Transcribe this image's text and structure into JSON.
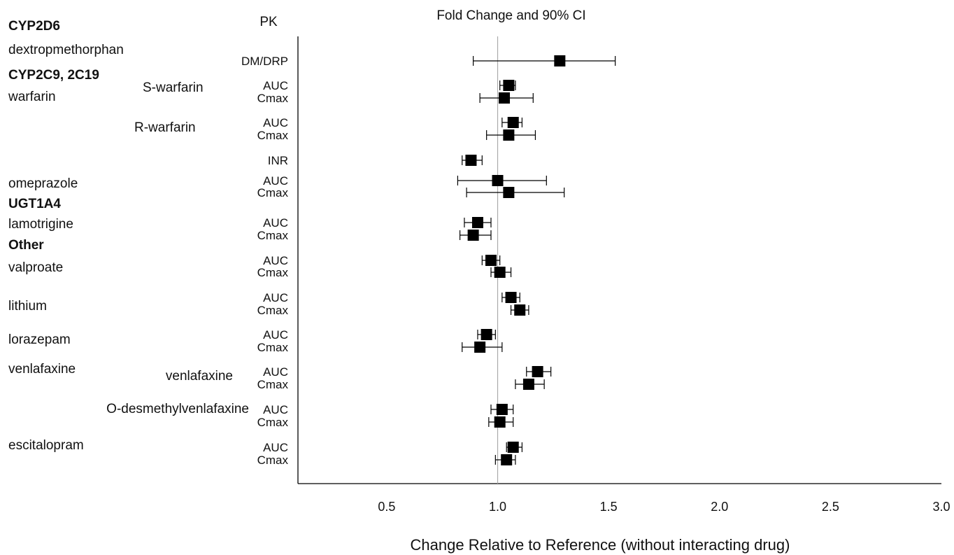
{
  "chart_data": {
    "type": "forest",
    "title": "Fold Change and 90% CI",
    "pk_header": "PK",
    "xlabel": "Change Relative to Reference (without interacting drug)",
    "xlim": [
      0.1,
      3.0
    ],
    "xticks": [
      "0.5",
      "1.0",
      "1.5",
      "2.0",
      "2.5",
      "3.0"
    ],
    "reference_line": 1.0,
    "left_labels": [
      {
        "id": "cyp2d6",
        "text": "CYP2D6",
        "bold": true
      },
      {
        "id": "dextromethorphan",
        "text": "dextropmethorphan",
        "bold": false
      },
      {
        "id": "cyp2c9",
        "text": "CYP2C9, 2C19",
        "bold": true
      },
      {
        "id": "warfarin",
        "text": "warfarin",
        "bold": false
      },
      {
        "id": "omeprazole",
        "text": "omeprazole",
        "bold": false
      },
      {
        "id": "ugt1a4",
        "text": "UGT1A4",
        "bold": true
      },
      {
        "id": "lamotrigine",
        "text": "lamotrigine",
        "bold": false
      },
      {
        "id": "other",
        "text": "Other",
        "bold": true
      },
      {
        "id": "valproate",
        "text": "valproate",
        "bold": false
      },
      {
        "id": "lithium",
        "text": "lithium",
        "bold": false
      },
      {
        "id": "lorazepam",
        "text": "lorazepam",
        "bold": false
      },
      {
        "id": "venlafaxine-drug",
        "text": "venlafaxine",
        "bold": false
      },
      {
        "id": "escitalopram",
        "text": "escitalopram",
        "bold": false
      }
    ],
    "sub_labels": [
      {
        "id": "s-warfarin",
        "text": "S-warfarin"
      },
      {
        "id": "r-warfarin",
        "text": "R-warfarin"
      },
      {
        "id": "venlafaxine-analyte",
        "text": "venlafaxine"
      },
      {
        "id": "o-desmethylvenlafaxine",
        "text": "O-desmethylvenlafaxine"
      }
    ],
    "rows": [
      {
        "pk": "DM/DRP",
        "estimate": 1.28,
        "lower": 0.89,
        "upper": 1.53
      },
      {
        "pk": "AUC",
        "estimate": 1.05,
        "lower": 1.01,
        "upper": 1.08
      },
      {
        "pk": "Cmax",
        "estimate": 1.03,
        "lower": 0.92,
        "upper": 1.16
      },
      {
        "pk": "AUC",
        "estimate": 1.07,
        "lower": 1.02,
        "upper": 1.11
      },
      {
        "pk": "Cmax",
        "estimate": 1.05,
        "lower": 0.95,
        "upper": 1.17
      },
      {
        "pk": "INR",
        "estimate": 0.88,
        "lower": 0.84,
        "upper": 0.93
      },
      {
        "pk": "AUC",
        "estimate": 1.0,
        "lower": 0.82,
        "upper": 1.22
      },
      {
        "pk": "Cmax",
        "estimate": 1.05,
        "lower": 0.86,
        "upper": 1.3
      },
      {
        "pk": "AUC",
        "estimate": 0.91,
        "lower": 0.85,
        "upper": 0.97
      },
      {
        "pk": "Cmax",
        "estimate": 0.89,
        "lower": 0.83,
        "upper": 0.97
      },
      {
        "pk": "AUC",
        "estimate": 0.97,
        "lower": 0.93,
        "upper": 1.01
      },
      {
        "pk": "Cmax",
        "estimate": 1.01,
        "lower": 0.97,
        "upper": 1.06
      },
      {
        "pk": "AUC",
        "estimate": 1.06,
        "lower": 1.02,
        "upper": 1.1
      },
      {
        "pk": "Cmax",
        "estimate": 1.1,
        "lower": 1.06,
        "upper": 1.14
      },
      {
        "pk": "AUC",
        "estimate": 0.95,
        "lower": 0.91,
        "upper": 0.99
      },
      {
        "pk": "Cmax",
        "estimate": 0.92,
        "lower": 0.84,
        "upper": 1.02
      },
      {
        "pk": "AUC",
        "estimate": 1.18,
        "lower": 1.13,
        "upper": 1.24
      },
      {
        "pk": "Cmax",
        "estimate": 1.14,
        "lower": 1.08,
        "upper": 1.21
      },
      {
        "pk": "AUC",
        "estimate": 1.02,
        "lower": 0.97,
        "upper": 1.07
      },
      {
        "pk": "Cmax",
        "estimate": 1.01,
        "lower": 0.96,
        "upper": 1.07
      },
      {
        "pk": "AUC",
        "estimate": 1.07,
        "lower": 1.04,
        "upper": 1.11
      },
      {
        "pk": "Cmax",
        "estimate": 1.04,
        "lower": 0.99,
        "upper": 1.08
      }
    ]
  }
}
